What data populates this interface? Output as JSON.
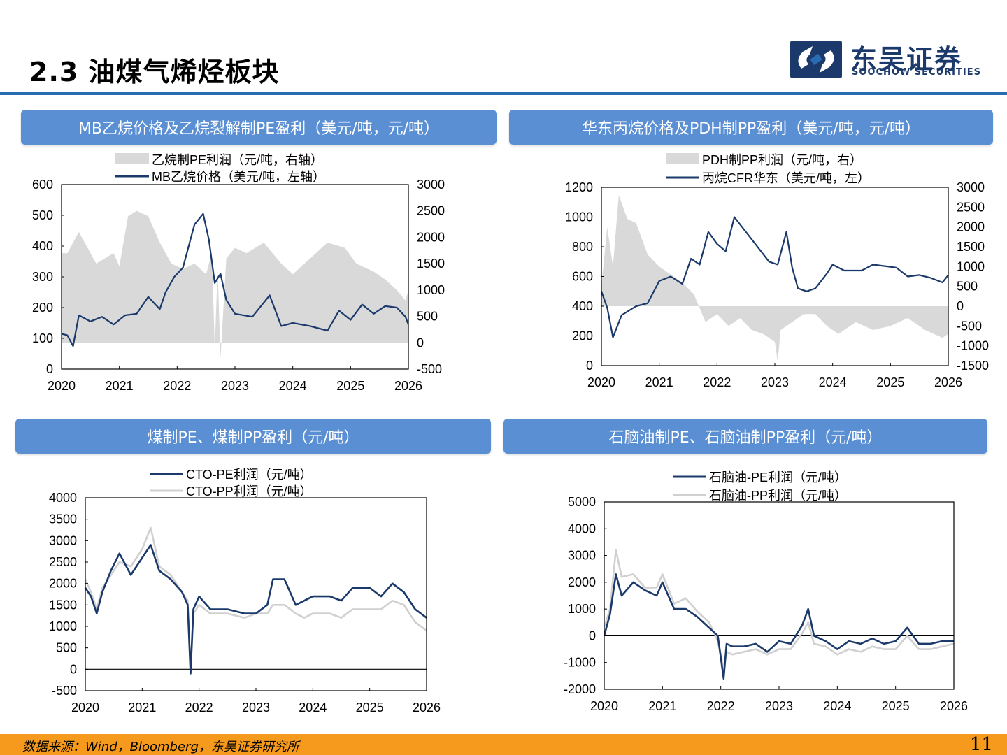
{
  "header": {
    "title": "2.3 油煤气烯烃板块",
    "logo_cn": "东吴证券",
    "logo_en": "SOOCHOW SECURITIES"
  },
  "colors": {
    "accent": "#2a6cb3",
    "banner": "#5b8fd4",
    "navy": "#1b3a6b",
    "gray": "#d9d9d9",
    "footer": "#f59a1c"
  },
  "footer": {
    "source": "数据来源：Wind，Bloomberg，东吴证券研究所",
    "page": "11"
  },
  "chart_data": [
    {
      "id": "c1",
      "type": "area+line",
      "title": "MB乙烷价格及乙烷裂解制PE盈利（美元/吨，元/吨）",
      "x_labels": [
        "2020",
        "2021",
        "2022",
        "2023",
        "2024",
        "2025",
        "2026"
      ],
      "left_axis": {
        "min": 0,
        "max": 600,
        "ticks": [
          "0",
          "100",
          "200",
          "300",
          "400",
          "500",
          "600"
        ]
      },
      "right_axis": {
        "min": -500,
        "max": 3000,
        "ticks": [
          "-500",
          "0",
          "500",
          "1000",
          "1500",
          "2000",
          "2500",
          "3000"
        ]
      },
      "legend": [
        "乙烷制PE利润（元/吨，右轴）",
        "MB乙烷价格（美元/吨，左轴）"
      ],
      "area_series": {
        "name": "乙烷制PE利润（元/吨，右轴）",
        "axis": "right",
        "x": [
          2020,
          2020.1,
          2020.3,
          2020.6,
          2020.9,
          2021.0,
          2021.15,
          2021.3,
          2021.5,
          2021.7,
          2021.9,
          2022.1,
          2022.3,
          2022.5,
          2022.6,
          2022.65,
          2022.7,
          2022.75,
          2022.85,
          2023.0,
          2023.2,
          2023.5,
          2023.8,
          2024.0,
          2024.3,
          2024.6,
          2024.9,
          2025.1,
          2025.4,
          2025.6,
          2025.8,
          2025.95,
          2026.0
        ],
        "values": [
          1700,
          1700,
          2100,
          1500,
          1700,
          1450,
          2400,
          2500,
          2400,
          1900,
          1500,
          1400,
          1500,
          1300,
          1700,
          -100,
          1400,
          -300,
          1600,
          1800,
          1700,
          1900,
          1500,
          1300,
          1600,
          1900,
          1800,
          1500,
          1350,
          1200,
          1000,
          800,
          1000
        ]
      },
      "line_series": {
        "name": "MB乙烷价格（美元/吨，左轴）",
        "axis": "left",
        "x": [
          2020,
          2020.1,
          2020.2,
          2020.3,
          2020.5,
          2020.7,
          2020.9,
          2021.1,
          2021.3,
          2021.5,
          2021.7,
          2021.8,
          2021.95,
          2022.1,
          2022.3,
          2022.45,
          2022.55,
          2022.65,
          2022.75,
          2022.85,
          2023.0,
          2023.3,
          2023.6,
          2023.8,
          2024.0,
          2024.3,
          2024.6,
          2024.8,
          2025.0,
          2025.2,
          2025.4,
          2025.6,
          2025.8,
          2025.95,
          2026.0
        ],
        "values": [
          115,
          110,
          75,
          175,
          155,
          170,
          145,
          175,
          180,
          235,
          195,
          250,
          300,
          330,
          470,
          505,
          420,
          280,
          310,
          225,
          180,
          170,
          240,
          140,
          150,
          140,
          125,
          190,
          160,
          210,
          180,
          205,
          200,
          170,
          145
        ]
      }
    },
    {
      "id": "c2",
      "type": "area+line",
      "title": "华东丙烷价格及PDH制PP盈利（美元/吨，元/吨）",
      "x_labels": [
        "2020",
        "2021",
        "2022",
        "2023",
        "2024",
        "2025",
        "2026"
      ],
      "left_axis": {
        "min": 0,
        "max": 1200,
        "ticks": [
          "0",
          "200",
          "400",
          "600",
          "800",
          "1000",
          "1200"
        ]
      },
      "right_axis": {
        "min": -1500,
        "max": 3000,
        "ticks": [
          "-1500",
          "-1000",
          "-500",
          "0",
          "500",
          "1000",
          "1500",
          "2000",
          "2500",
          "3000"
        ]
      },
      "legend": [
        "PDH制PP利润（元/吨，右）",
        "丙烷CFR华东（美元/吨，左）"
      ],
      "area_series": {
        "name": "PDH制PP利润（元/吨，右）",
        "axis": "right",
        "x": [
          2020,
          2020.1,
          2020.2,
          2020.3,
          2020.45,
          2020.6,
          2020.8,
          2021.0,
          2021.2,
          2021.4,
          2021.6,
          2021.8,
          2022.0,
          2022.2,
          2022.4,
          2022.6,
          2022.8,
          2023.0,
          2023.05,
          2023.1,
          2023.3,
          2023.5,
          2023.7,
          2023.9,
          2024.1,
          2024.4,
          2024.7,
          2025.0,
          2025.3,
          2025.6,
          2025.9,
          2026.0
        ],
        "values": [
          500,
          2000,
          1000,
          2800,
          2200,
          2100,
          1300,
          1000,
          800,
          600,
          300,
          -400,
          -200,
          -500,
          -300,
          -600,
          -700,
          -900,
          -1400,
          -600,
          -400,
          -200,
          -200,
          -500,
          -700,
          -400,
          -600,
          -500,
          -300,
          -600,
          -800,
          -700
        ]
      },
      "line_series": {
        "name": "丙烷CFR华东（美元/吨，左）",
        "axis": "left",
        "x": [
          2020,
          2020.1,
          2020.2,
          2020.35,
          2020.6,
          2020.8,
          2021.0,
          2021.2,
          2021.4,
          2021.55,
          2021.7,
          2021.85,
          2022.0,
          2022.15,
          2022.3,
          2022.5,
          2022.7,
          2022.9,
          2023.05,
          2023.2,
          2023.3,
          2023.4,
          2023.55,
          2023.7,
          2023.9,
          2024.0,
          2024.2,
          2024.5,
          2024.7,
          2024.9,
          2025.1,
          2025.3,
          2025.5,
          2025.7,
          2025.9,
          2026.0
        ],
        "values": [
          500,
          390,
          190,
          340,
          400,
          420,
          570,
          600,
          550,
          720,
          680,
          900,
          820,
          770,
          1000,
          900,
          800,
          700,
          680,
          900,
          660,
          520,
          500,
          520,
          620,
          680,
          640,
          640,
          680,
          670,
          660,
          600,
          610,
          590,
          560,
          610
        ]
      }
    },
    {
      "id": "c3",
      "type": "line",
      "title": "煤制PE、煤制PP盈利（元/吨）",
      "x_labels": [
        "2020",
        "2021",
        "2022",
        "2023",
        "2024",
        "2025",
        "2026"
      ],
      "y_axis": {
        "min": -500,
        "max": 4000,
        "ticks": [
          "-500",
          "0",
          "500",
          "1000",
          "1500",
          "2000",
          "2500",
          "3000",
          "3500",
          "4000"
        ]
      },
      "legend": [
        "CTO-PE利润（元/吨）",
        "CTO-PP利润（元/吨）"
      ],
      "series": [
        {
          "name": "CTO-PE利润（元/吨）",
          "x": [
            2020,
            2020.1,
            2020.2,
            2020.3,
            2020.45,
            2020.6,
            2020.8,
            2021.0,
            2021.15,
            2021.3,
            2021.5,
            2021.7,
            2021.8,
            2021.85,
            2021.9,
            2022.0,
            2022.2,
            2022.5,
            2022.8,
            2023.0,
            2023.2,
            2023.3,
            2023.5,
            2023.7,
            2023.85,
            2024.0,
            2024.3,
            2024.5,
            2024.7,
            2025.0,
            2025.2,
            2025.4,
            2025.6,
            2025.8,
            2026.0
          ],
          "values": [
            1900,
            1700,
            1300,
            1800,
            2300,
            2700,
            2200,
            2600,
            2900,
            2300,
            2100,
            1800,
            1500,
            -100,
            1400,
            1700,
            1400,
            1400,
            1300,
            1300,
            1500,
            2100,
            2100,
            1500,
            1600,
            1700,
            1700,
            1600,
            1900,
            1900,
            1700,
            2000,
            1800,
            1400,
            1200
          ]
        },
        {
          "name": "CTO-PP利润（元/吨）",
          "x": [
            2020,
            2020.1,
            2020.2,
            2020.3,
            2020.45,
            2020.6,
            2020.8,
            2021.0,
            2021.15,
            2021.3,
            2021.5,
            2021.7,
            2021.8,
            2021.85,
            2021.9,
            2022.0,
            2022.2,
            2022.5,
            2022.8,
            2023.0,
            2023.2,
            2023.3,
            2023.5,
            2023.7,
            2023.85,
            2024.0,
            2024.3,
            2024.5,
            2024.7,
            2025.0,
            2025.2,
            2025.4,
            2025.6,
            2025.8,
            2026.0
          ],
          "values": [
            2100,
            1800,
            1400,
            1900,
            2200,
            2500,
            2400,
            2800,
            3300,
            2400,
            2200,
            1800,
            1600,
            0,
            1300,
            1500,
            1300,
            1300,
            1200,
            1300,
            1300,
            1500,
            1500,
            1300,
            1200,
            1300,
            1300,
            1200,
            1400,
            1400,
            1400,
            1600,
            1500,
            1100,
            900
          ]
        }
      ]
    },
    {
      "id": "c4",
      "type": "line",
      "title": "石脑油制PE、石脑油制PP盈利（元/吨）",
      "x_labels": [
        "2020",
        "2021",
        "2022",
        "2023",
        "2024",
        "2025",
        "2026"
      ],
      "y_axis": {
        "min": -2000,
        "max": 5000,
        "ticks": [
          "-2000",
          "-1000",
          "0",
          "1000",
          "2000",
          "3000",
          "4000",
          "5000"
        ]
      },
      "legend": [
        "石脑油-PE利润（元/吨）",
        "石脑油-PP利润（元/吨）"
      ],
      "series": [
        {
          "name": "石脑油-PE利润（元/吨）",
          "x": [
            2020,
            2020.1,
            2020.2,
            2020.3,
            2020.5,
            2020.7,
            2020.9,
            2021.0,
            2021.2,
            2021.4,
            2021.6,
            2021.8,
            2021.95,
            2022.05,
            2022.1,
            2022.2,
            2022.4,
            2022.6,
            2022.8,
            2023.0,
            2023.2,
            2023.4,
            2023.5,
            2023.6,
            2023.8,
            2024.0,
            2024.2,
            2024.4,
            2024.6,
            2024.8,
            2025.0,
            2025.2,
            2025.4,
            2025.6,
            2025.8,
            2026.0
          ],
          "values": [
            0,
            800,
            2300,
            1500,
            2000,
            1700,
            1500,
            2000,
            1000,
            1000,
            700,
            300,
            0,
            -1600,
            -300,
            -400,
            -400,
            -300,
            -600,
            -200,
            -300,
            400,
            1000,
            0,
            -200,
            -500,
            -200,
            -300,
            -100,
            -300,
            -200,
            300,
            -300,
            -300,
            -200,
            -200
          ]
        },
        {
          "name": "石脑油-PP利润（元/吨）",
          "x": [
            2020,
            2020.1,
            2020.2,
            2020.3,
            2020.5,
            2020.7,
            2020.9,
            2021.0,
            2021.2,
            2021.4,
            2021.6,
            2021.8,
            2021.95,
            2022.05,
            2022.1,
            2022.2,
            2022.4,
            2022.6,
            2022.8,
            2023.0,
            2023.2,
            2023.4,
            2023.5,
            2023.6,
            2023.8,
            2024.0,
            2024.2,
            2024.4,
            2024.6,
            2024.8,
            2025.0,
            2025.2,
            2025.4,
            2025.6,
            2025.8,
            2026.0
          ],
          "values": [
            300,
            1000,
            3200,
            2200,
            2300,
            1800,
            1800,
            2300,
            1200,
            1400,
            900,
            500,
            -200,
            -1200,
            -600,
            -700,
            -600,
            -500,
            -700,
            -500,
            -500,
            100,
            500,
            -300,
            -400,
            -700,
            -500,
            -600,
            -400,
            -500,
            -500,
            0,
            -500,
            -500,
            -400,
            -300
          ]
        }
      ]
    }
  ]
}
